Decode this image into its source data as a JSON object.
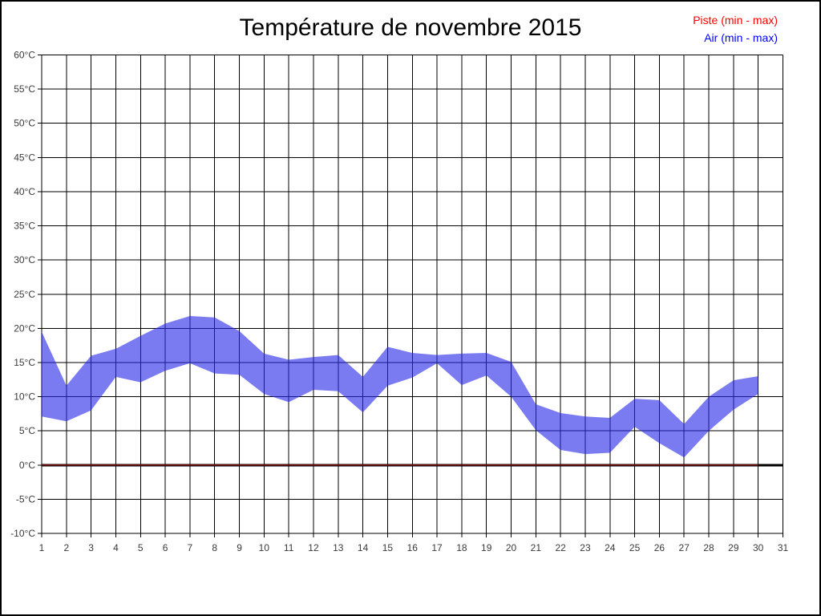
{
  "page": {
    "title": "Température de novembre 2015"
  },
  "legend": {
    "items": [
      {
        "label": "Piste (min - max)",
        "color": "#ff0000"
      },
      {
        "label": "Air (min - max)",
        "color": "#0000ff"
      }
    ]
  },
  "chart_data": {
    "type": "area",
    "title": "Température de novembre 2015",
    "xlabel": "",
    "ylabel": "",
    "x_min": 1,
    "x_max": 31,
    "y_min": -10,
    "y_max": 60,
    "y_step": 5,
    "grid": true,
    "grid_color": "#000000",
    "legend_position": "top-right",
    "x_tick_labels": [
      "1",
      "2",
      "3",
      "4",
      "5",
      "6",
      "7",
      "8",
      "9",
      "10",
      "11",
      "12",
      "13",
      "14",
      "15",
      "16",
      "17",
      "18",
      "19",
      "20",
      "21",
      "22",
      "23",
      "24",
      "25",
      "26",
      "27",
      "28",
      "29",
      "30",
      "31"
    ],
    "y_tick_labels": [
      "60°C",
      "55°C",
      "50°C",
      "45°C",
      "40°C",
      "35°C",
      "30°C",
      "25°C",
      "20°C",
      "15°C",
      "10°C",
      "5°C",
      "0°C",
      "-5°C",
      "-10°C"
    ],
    "zero_line": {
      "value": 0,
      "color": "#000000"
    },
    "series": [
      {
        "name": "Piste (min - max)",
        "render": "line",
        "legend_color": "#ff0000",
        "draw_color": "#7d0f0f",
        "days": [
          1,
          2,
          3,
          4,
          5,
          6,
          7,
          8,
          9,
          10,
          11,
          12,
          13,
          14,
          15,
          16,
          17,
          18,
          19,
          20,
          21,
          22,
          23,
          24,
          25,
          26,
          27,
          28,
          29,
          30
        ],
        "min": [
          0,
          0,
          0,
          0,
          0,
          0,
          0,
          0,
          0,
          0,
          0,
          0,
          0,
          0,
          0,
          0,
          0,
          0,
          0,
          0,
          0,
          0,
          0,
          0,
          0,
          0,
          0,
          0,
          0,
          0
        ],
        "max": [
          0,
          0,
          0,
          0,
          0,
          0,
          0,
          0,
          0,
          0,
          0,
          0,
          0,
          0,
          0,
          0,
          0,
          0,
          0,
          0,
          0,
          0,
          0,
          0,
          0,
          0,
          0,
          0,
          0,
          0
        ]
      },
      {
        "name": "Air (min - max)",
        "render": "band",
        "legend_color": "#0000ff",
        "draw_color": "rgba(40,40,232,0.62)",
        "days": [
          1,
          2,
          3,
          4,
          5,
          6,
          7,
          8,
          9,
          10,
          11,
          12,
          13,
          14,
          15,
          16,
          17,
          18,
          19,
          20,
          21,
          22,
          23,
          24,
          25,
          26,
          27,
          28,
          29,
          30
        ],
        "min": [
          7.1,
          6.4,
          8.0,
          12.9,
          12.1,
          13.8,
          14.9,
          13.4,
          13.2,
          10.4,
          9.2,
          11.0,
          10.8,
          7.7,
          11.6,
          12.8,
          14.9,
          11.7,
          13.1,
          10.0,
          5.1,
          2.2,
          1.6,
          1.8,
          5.6,
          3.2,
          1.1,
          5.0,
          8.1,
          10.4
        ],
        "max": [
          19.5,
          11.6,
          16.0,
          17.0,
          18.9,
          20.7,
          21.8,
          21.6,
          19.6,
          16.3,
          15.4,
          15.8,
          16.1,
          12.9,
          17.3,
          16.4,
          16.1,
          16.3,
          16.4,
          15.1,
          8.9,
          7.6,
          7.1,
          6.9,
          9.7,
          9.5,
          6.0,
          10.0,
          12.4,
          13.0
        ]
      }
    ]
  }
}
